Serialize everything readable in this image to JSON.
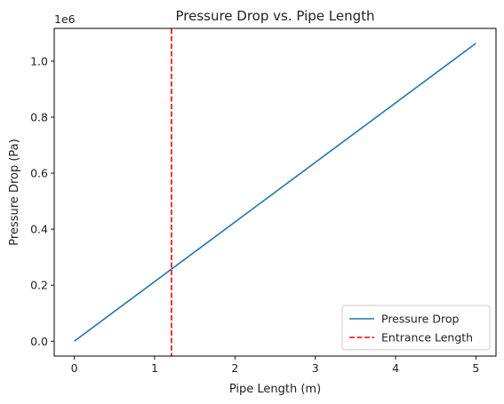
{
  "chart_data": {
    "type": "line",
    "title": "Pressure Drop vs. Pipe Length",
    "xlabel": "Pipe Length (m)",
    "ylabel": "Pressure Drop (Pa)",
    "y_offset_label": "1e6",
    "xlim": [
      -0.25,
      5.25
    ],
    "ylim": [
      -0.053,
      1.117
    ],
    "x_ticks": [
      0,
      1,
      2,
      3,
      4,
      5
    ],
    "x_tick_labels": [
      "0",
      "1",
      "2",
      "3",
      "4",
      "5"
    ],
    "y_ticks": [
      0.0,
      0.2,
      0.4,
      0.6,
      0.8,
      1.0
    ],
    "y_tick_labels": [
      "0.0",
      "0.2",
      "0.4",
      "0.6",
      "0.8",
      "1.0"
    ],
    "grid": false,
    "legend_position": "lower-right",
    "series": [
      {
        "name": "Pressure Drop",
        "style": "solid",
        "color": "#1f77b4",
        "x": [
          0,
          5
        ],
        "y": [
          0.0,
          1.064
        ]
      },
      {
        "name": "Entrance Length",
        "style": "dashed-vertical",
        "color": "#ff0000",
        "x": 1.21
      }
    ]
  }
}
